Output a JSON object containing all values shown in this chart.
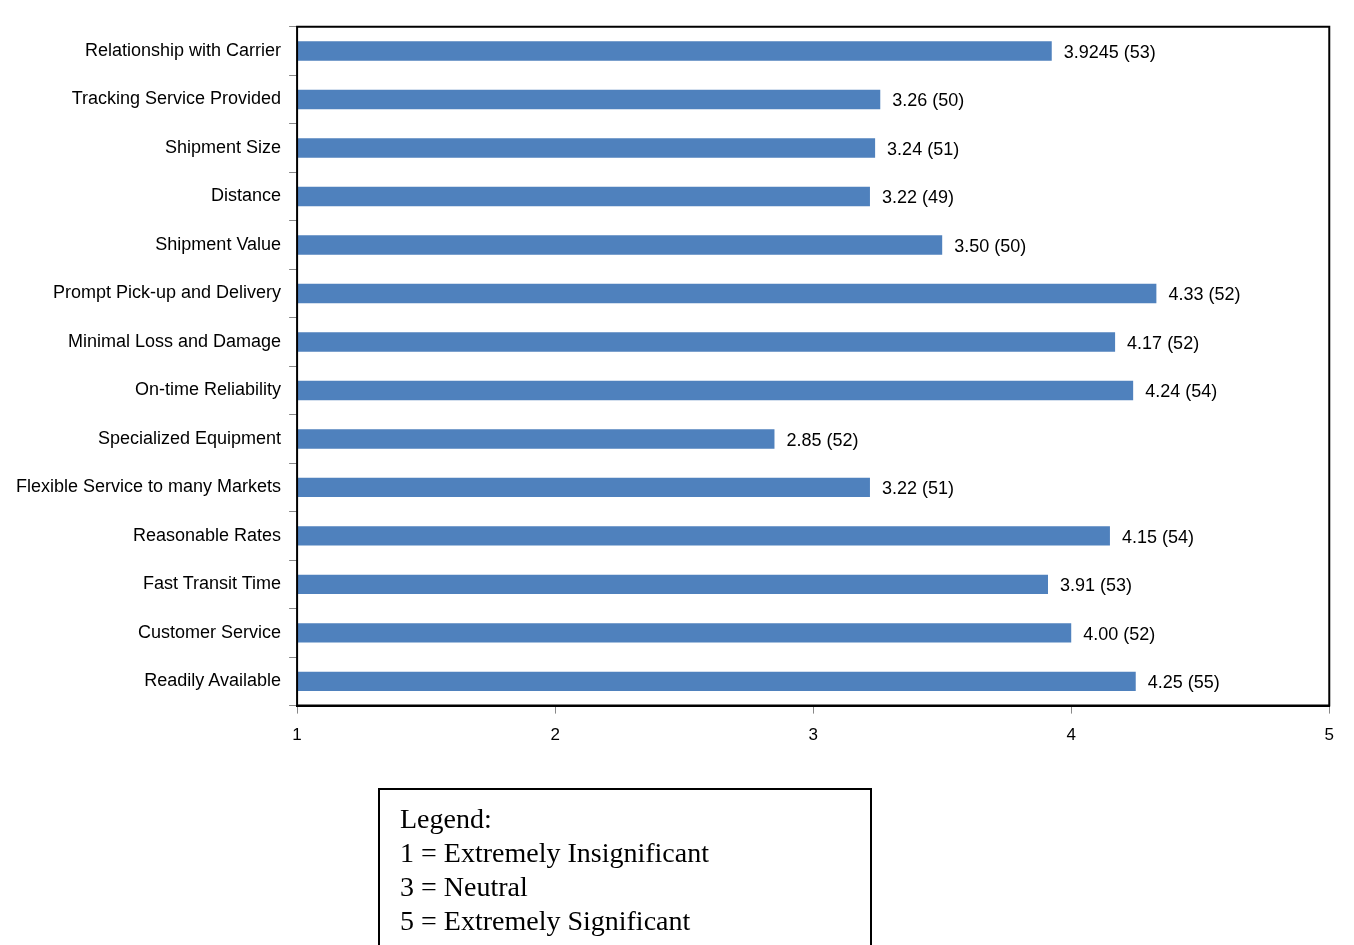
{
  "chart_data": {
    "type": "bar",
    "orientation": "horizontal",
    "categories": [
      "Relationship with Carrier",
      "Tracking Service Provided",
      "Shipment Size",
      "Distance",
      "Shipment Value",
      "Prompt Pick-up and Delivery",
      "Minimal Loss and Damage",
      "On-time Reliability",
      "Specialized Equipment",
      "Flexible Service to many Markets",
      "Reasonable Rates",
      "Fast Transit Time",
      "Customer Service",
      "Readily Available"
    ],
    "values": [
      3.9245,
      3.26,
      3.24,
      3.22,
      3.5,
      4.33,
      4.17,
      4.24,
      2.85,
      3.22,
      4.15,
      3.91,
      4.0,
      4.25
    ],
    "value_labels": [
      "3.9245 (53)",
      "3.26 (50)",
      "3.24 (51)",
      "3.22 (49)",
      "3.50 (50)",
      "4.33 (52)",
      "4.17 (52)",
      "4.24 (54)",
      "2.85 (52)",
      "3.22 (51)",
      "4.15 (54)",
      "3.91 (53)",
      "4.00 (52)",
      "4.25 (55)"
    ],
    "color": "#4f81bd",
    "xlim": [
      1,
      5
    ],
    "xticks": [
      1,
      2,
      3,
      4,
      5
    ],
    "grid": false,
    "legend": false,
    "annotations": [
      "Legend:",
      "1 = Extremely Insignificant",
      "3 = Neutral",
      "5 = Extremely Significant"
    ]
  }
}
